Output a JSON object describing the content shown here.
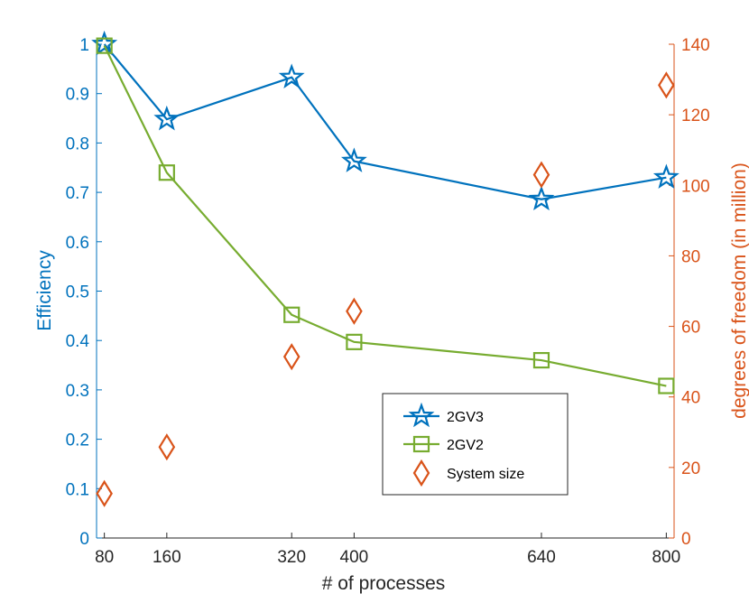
{
  "chart_data": {
    "type": "line",
    "x": [
      80,
      160,
      320,
      400,
      640,
      800
    ],
    "xlabel": "# of processes",
    "xticks": [
      "80",
      "160",
      "320",
      "400",
      "640",
      "800"
    ],
    "xlim": [
      70,
      810
    ],
    "left_axis": {
      "label": "Efficiency",
      "ylim": [
        0,
        1
      ],
      "ticks": [
        "0",
        "0.1",
        "0.2",
        "0.3",
        "0.4",
        "0.5",
        "0.6",
        "0.7",
        "0.8",
        "0.9",
        "1"
      ],
      "color": "#0072BD"
    },
    "right_axis": {
      "label": "degrees of freedom (in million)",
      "ylim": [
        0,
        140
      ],
      "ticks": [
        "0",
        "20",
        "40",
        "60",
        "80",
        "100",
        "120",
        "140"
      ],
      "color": "#D95319"
    },
    "series": [
      {
        "name": "2GV3",
        "axis": "left",
        "marker": "star",
        "line": true,
        "color": "#0072BD",
        "values": [
          1.0,
          0.848,
          0.933,
          0.763,
          0.686,
          0.73
        ]
      },
      {
        "name": "2GV2",
        "axis": "left",
        "marker": "square",
        "line": true,
        "color": "#77AC30",
        "values": [
          0.997,
          0.74,
          0.452,
          0.397,
          0.36,
          0.308
        ]
      },
      {
        "name": "System size",
        "axis": "right",
        "marker": "diamond",
        "line": false,
        "color": "#D95319",
        "values": [
          12.6,
          25.8,
          51.4,
          64.3,
          103,
          128.4
        ]
      }
    ],
    "legend": {
      "position": "bottom-right"
    }
  }
}
